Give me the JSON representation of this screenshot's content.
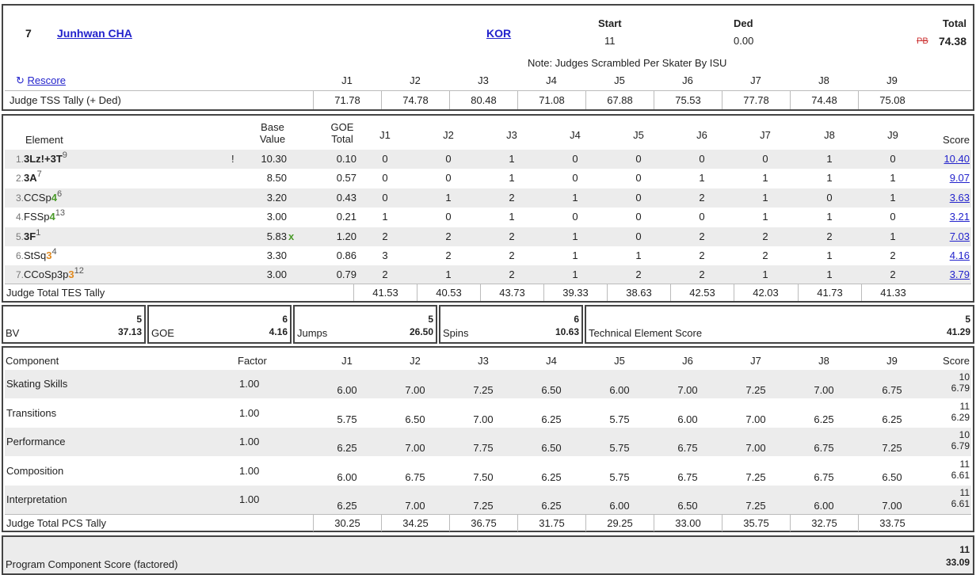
{
  "skater": {
    "rank": "7",
    "name": "Junhwan CHA",
    "nation": "KOR",
    "start_label": "Start",
    "start_value": "11",
    "ded_label": "Ded",
    "ded_value": "0.00",
    "total_label": "Total",
    "total_value": "74.38",
    "pb_mark": "PB",
    "note": "Note: Judges Scrambled Per Skater By ISU"
  },
  "judges": [
    "J1",
    "J2",
    "J3",
    "J4",
    "J5",
    "J6",
    "J7",
    "J8",
    "J9"
  ],
  "rescore_label": "Rescore",
  "tss_tally": {
    "label": "Judge TSS Tally (+ Ded)",
    "values": [
      "71.78",
      "74.78",
      "80.48",
      "71.08",
      "67.88",
      "75.53",
      "77.78",
      "74.48",
      "75.08"
    ]
  },
  "elements_header": {
    "element": "Element",
    "base_value_1": "Base",
    "base_value_2": "Value",
    "goe_total_1": "GOE",
    "goe_total_2": "Total",
    "score": "Score"
  },
  "elements": [
    {
      "idx": "1.",
      "name": "3Lz!+3T",
      "level": "",
      "sup": "9",
      "flag": "!",
      "bv": "10.30",
      "bonus": "",
      "goe": "0.10",
      "j": [
        "0",
        "0",
        "1",
        "0",
        "0",
        "0",
        "0",
        "1",
        "0"
      ],
      "score": "10.40",
      "bold": true
    },
    {
      "idx": "2.",
      "name": "3A",
      "level": "",
      "sup": "7",
      "flag": "",
      "bv": "8.50",
      "bonus": "",
      "goe": "0.57",
      "j": [
        "0",
        "0",
        "1",
        "0",
        "0",
        "1",
        "1",
        "1",
        "1"
      ],
      "score": "9.07",
      "bold": true
    },
    {
      "idx": "3.",
      "name": "CCSp",
      "level": "4",
      "sup": "6",
      "flag": "",
      "bv": "3.20",
      "bonus": "",
      "goe": "0.43",
      "j": [
        "0",
        "1",
        "2",
        "1",
        "0",
        "2",
        "1",
        "0",
        "1"
      ],
      "score": "3.63",
      "bold": false
    },
    {
      "idx": "4.",
      "name": "FSSp",
      "level": "4",
      "sup": "13",
      "flag": "",
      "bv": "3.00",
      "bonus": "",
      "goe": "0.21",
      "j": [
        "1",
        "0",
        "1",
        "0",
        "0",
        "0",
        "1",
        "1",
        "0"
      ],
      "score": "3.21",
      "bold": false
    },
    {
      "idx": "5.",
      "name": "3F",
      "level": "",
      "sup": "1",
      "flag": "",
      "bv": "5.83",
      "bonus": "x",
      "goe": "1.20",
      "j": [
        "2",
        "2",
        "2",
        "1",
        "0",
        "2",
        "2",
        "2",
        "1"
      ],
      "score": "7.03",
      "bold": true
    },
    {
      "idx": "6.",
      "name": "StSq",
      "level": "3",
      "sup": "4",
      "flag": "",
      "bv": "3.30",
      "bonus": "",
      "goe": "0.86",
      "j": [
        "3",
        "2",
        "2",
        "1",
        "1",
        "2",
        "2",
        "1",
        "2"
      ],
      "score": "4.16",
      "bold": false
    },
    {
      "idx": "7.",
      "name": "CCoSp3p",
      "level": "3",
      "sup": "12",
      "flag": "",
      "bv": "3.00",
      "bonus": "",
      "goe": "0.79",
      "j": [
        "2",
        "1",
        "2",
        "1",
        "2",
        "2",
        "1",
        "1",
        "2"
      ],
      "score": "3.79",
      "bold": false
    }
  ],
  "tes_tally": {
    "label": "Judge Total TES Tally",
    "values": [
      "41.53",
      "40.53",
      "43.73",
      "39.33",
      "38.63",
      "42.53",
      "42.03",
      "41.73",
      "41.33"
    ]
  },
  "summary": [
    {
      "label": "BV",
      "rank": "5",
      "value": "37.13"
    },
    {
      "label": "GOE",
      "rank": "6",
      "value": "4.16"
    },
    {
      "label": "Jumps",
      "rank": "5",
      "value": "26.50"
    },
    {
      "label": "Spins",
      "rank": "6",
      "value": "10.63"
    },
    {
      "label": "Technical Element Score",
      "rank": "5",
      "value": "41.29"
    }
  ],
  "components_header": {
    "component": "Component",
    "factor": "Factor",
    "score": "Score"
  },
  "components": [
    {
      "name": "Skating Skills",
      "factor": "1.00",
      "j": [
        "6.00",
        "7.00",
        "7.25",
        "6.50",
        "6.00",
        "7.00",
        "7.25",
        "7.00",
        "6.75"
      ],
      "rank": "10",
      "score": "6.79"
    },
    {
      "name": "Transitions",
      "factor": "1.00",
      "j": [
        "5.75",
        "6.50",
        "7.00",
        "6.25",
        "5.75",
        "6.00",
        "7.00",
        "6.25",
        "6.25"
      ],
      "rank": "11",
      "score": "6.29"
    },
    {
      "name": "Performance",
      "factor": "1.00",
      "j": [
        "6.25",
        "7.00",
        "7.75",
        "6.50",
        "5.75",
        "6.75",
        "7.00",
        "6.75",
        "7.25"
      ],
      "rank": "10",
      "score": "6.79"
    },
    {
      "name": "Composition",
      "factor": "1.00",
      "j": [
        "6.00",
        "6.75",
        "7.50",
        "6.25",
        "5.75",
        "6.75",
        "7.25",
        "6.75",
        "6.50"
      ],
      "rank": "11",
      "score": "6.61"
    },
    {
      "name": "Interpretation",
      "factor": "1.00",
      "j": [
        "6.25",
        "7.00",
        "7.25",
        "6.25",
        "6.00",
        "6.50",
        "7.25",
        "6.00",
        "7.00"
      ],
      "rank": "11",
      "score": "6.61"
    }
  ],
  "pcs_tally": {
    "label": "Judge Total PCS Tally",
    "values": [
      "30.25",
      "34.25",
      "36.75",
      "31.75",
      "29.25",
      "33.00",
      "35.75",
      "32.75",
      "33.75"
    ]
  },
  "pcs_total": {
    "label": "Program Component Score (factored)",
    "rank": "11",
    "value": "33.09"
  },
  "colors": {
    "link": "#2222cc",
    "level_green": "#4a9a2a",
    "level_orange": "#e08a20",
    "row_grey": "#ececec",
    "border": "#444444"
  }
}
